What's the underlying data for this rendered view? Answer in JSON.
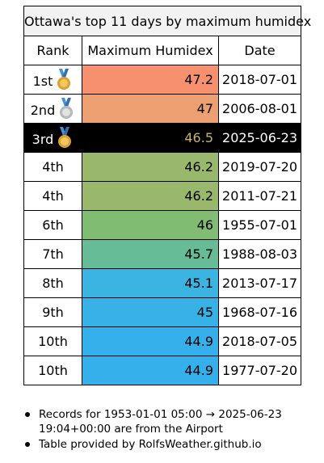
{
  "table": {
    "caption": "Ottawa's top 11 days by maximum humidex",
    "headers": {
      "rank": "Rank",
      "value": "Maximum Humidex",
      "date": "Date"
    },
    "rows": [
      {
        "rank": "1st",
        "medal": "gold-medal-icon",
        "value": "47.2",
        "date": "2018-07-01",
        "color": "#f7906f"
      },
      {
        "rank": "2nd",
        "medal": "silver-medal-icon",
        "value": "47",
        "date": "2006-08-01",
        "color": "#ec9f70"
      },
      {
        "rank": "3rd",
        "medal": "bronze-medal-icon",
        "value": "46.5",
        "date": "2025-06-23",
        "color": "#000000",
        "highlight": true
      },
      {
        "rank": "4th",
        "value": "46.2",
        "date": "2019-07-20",
        "color": "#99b86c"
      },
      {
        "rank": "4th",
        "value": "46.2",
        "date": "2011-07-21",
        "color": "#99b86c"
      },
      {
        "rank": "6th",
        "value": "46",
        "date": "1955-07-01",
        "color": "#80bc72"
      },
      {
        "rank": "7th",
        "value": "45.7",
        "date": "1988-08-03",
        "color": "#66bc97"
      },
      {
        "rank": "8th",
        "value": "45.1",
        "date": "2013-07-17",
        "color": "#3bb4e1"
      },
      {
        "rank": "9th",
        "value": "45",
        "date": "1968-07-16",
        "color": "#38b2e6"
      },
      {
        "rank": "10th",
        "value": "44.9",
        "date": "2018-07-05",
        "color": "#36b0eb"
      },
      {
        "rank": "10th",
        "value": "44.9",
        "date": "1977-07-20",
        "color": "#36b0eb"
      }
    ]
  },
  "notes": [
    "Records for 1953-01-01 05:00 → 2025-06-23 19:04+00:00 are from the Airport",
    "Table provided by RolfsWeather.github.io"
  ]
}
